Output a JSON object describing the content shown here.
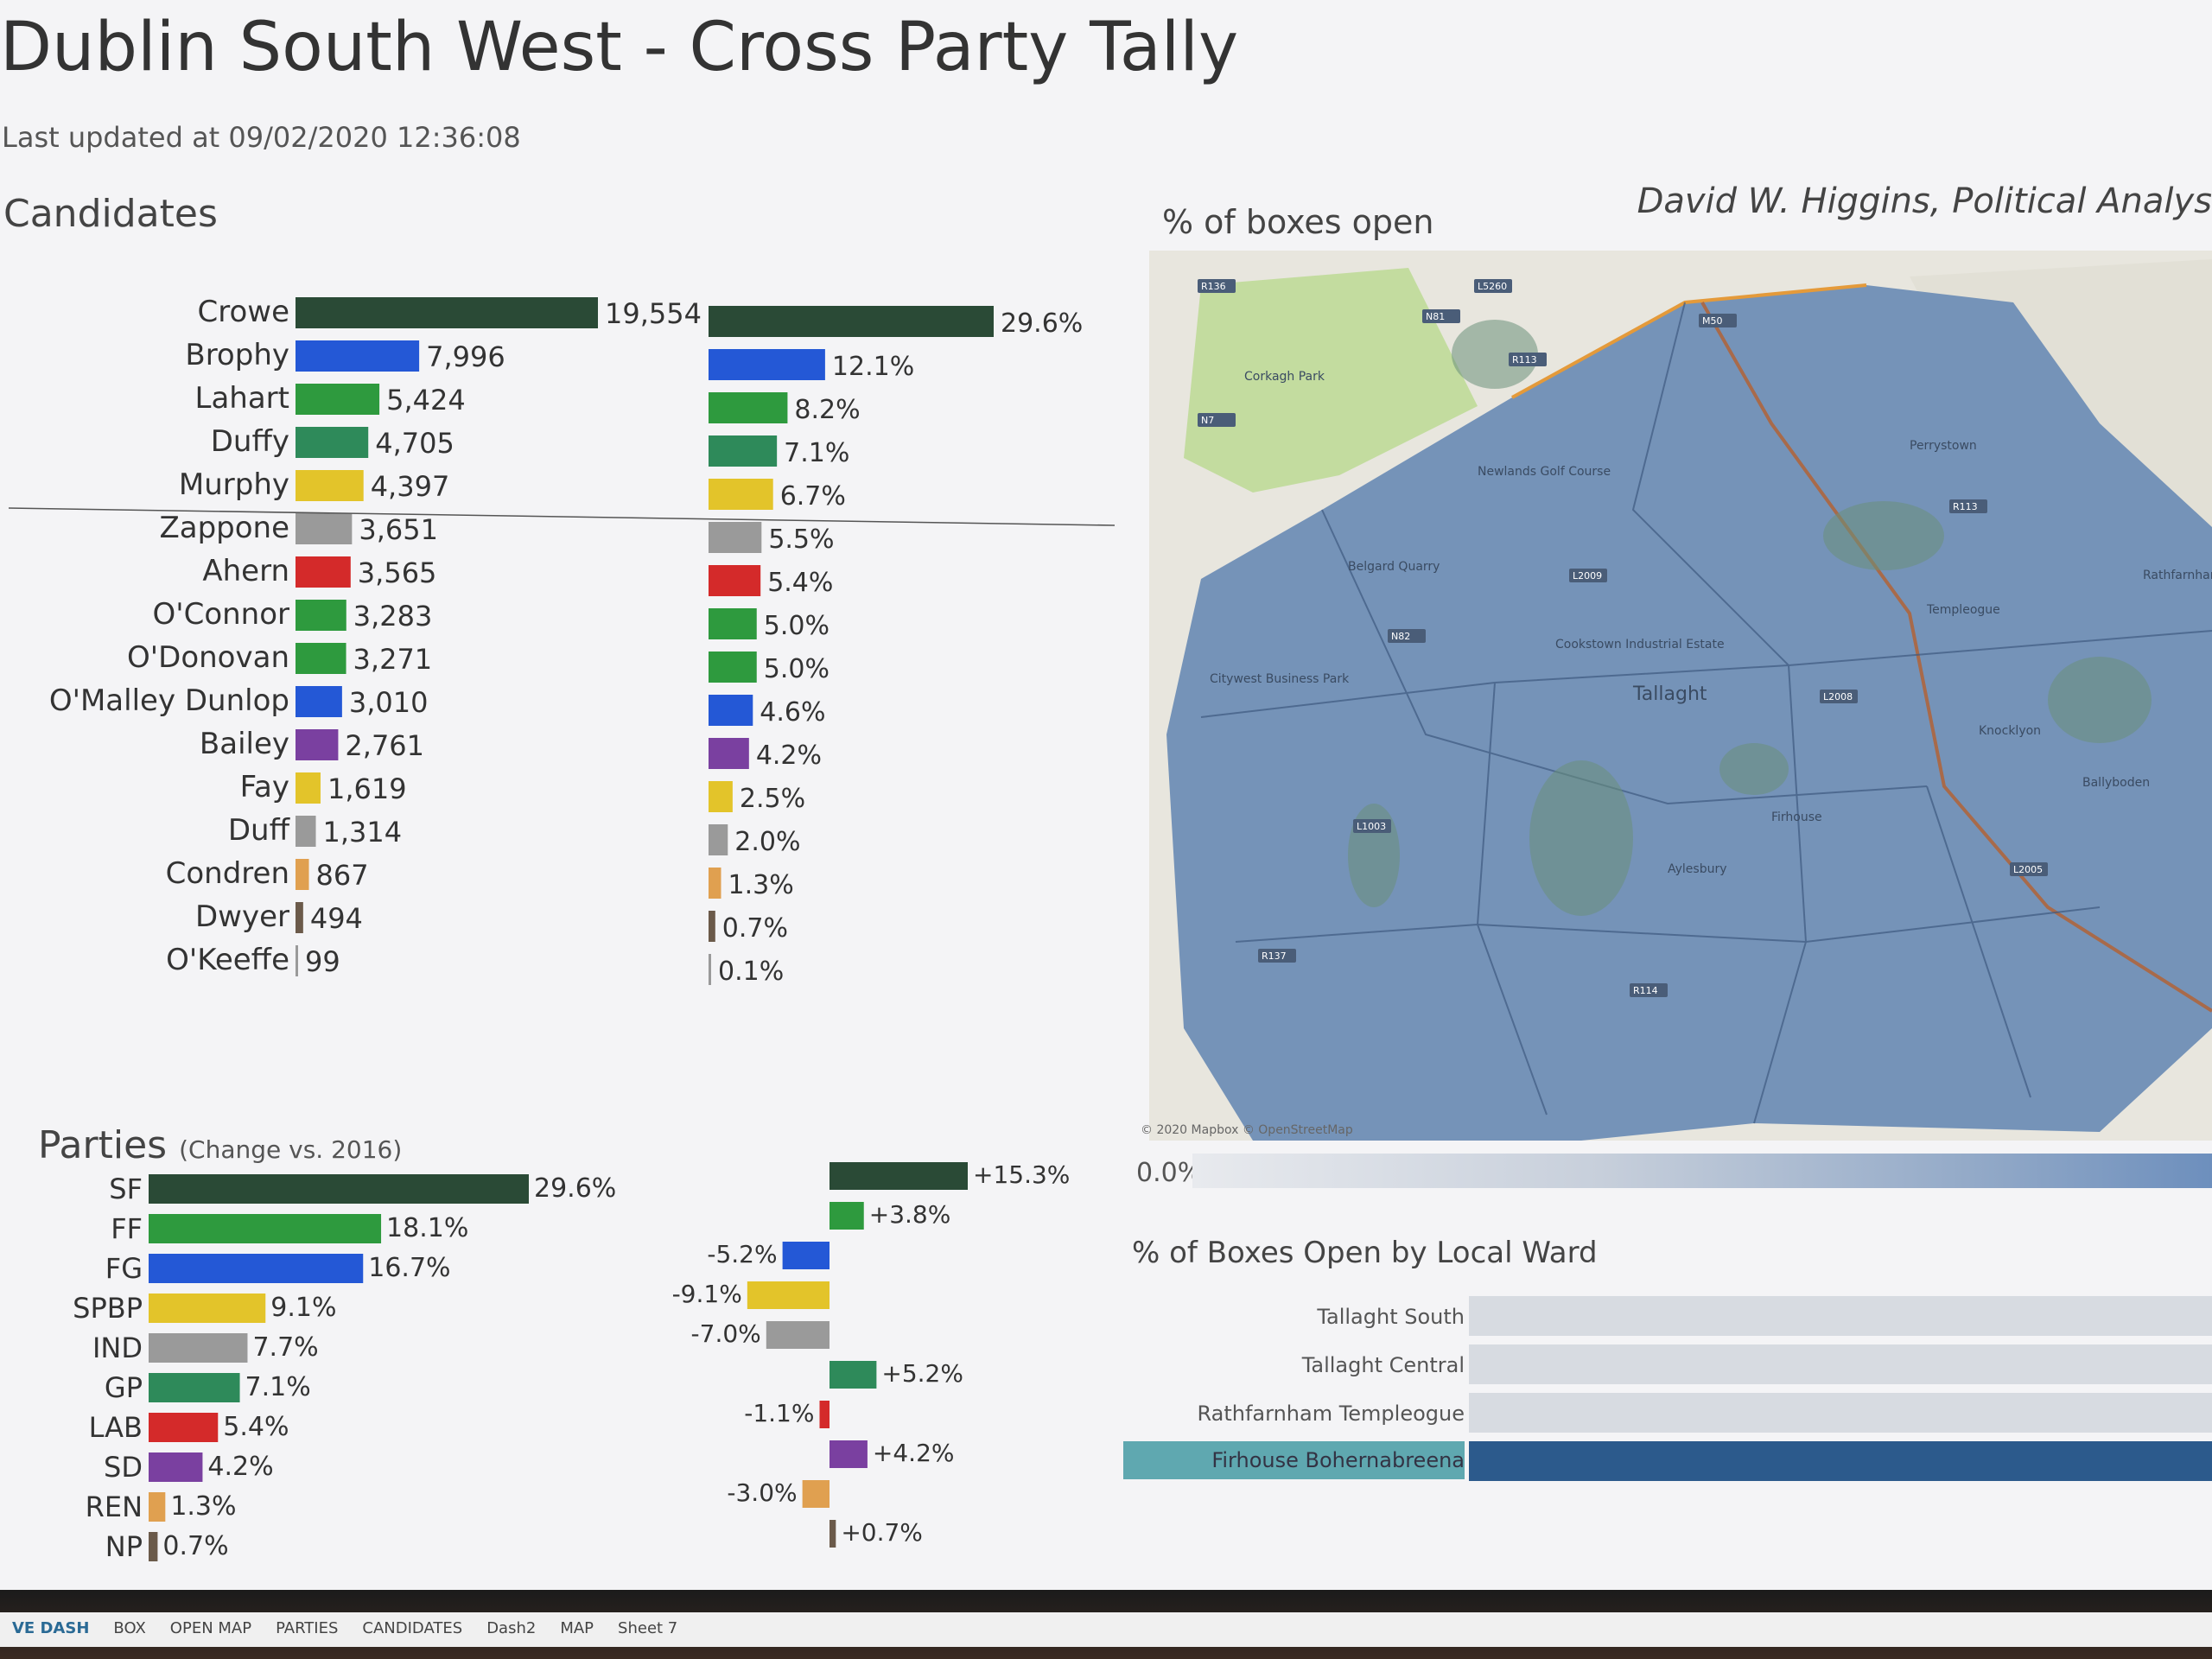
{
  "header": {
    "title": "Dublin South West - Cross Party Tally",
    "last_updated_label": "Last updated at",
    "last_updated_value": "09/02/2020 12:36:08",
    "author": "David W. Higgins, Political Analys"
  },
  "sections": {
    "candidates": "Candidates",
    "parties": "Parties",
    "parties_note": "(Change vs. 2016)",
    "boxes_open": "% of boxes open",
    "by_ward": "% of Boxes Open by Local Ward"
  },
  "map": {
    "legend_min": "0.0%",
    "attribution": "© 2020 Mapbox © OpenStreetMap",
    "labels": [
      "Tallaght",
      "Corkagh Park",
      "Belgard Quarry",
      "Citywest Business Park",
      "Newlands Golf Course",
      "Cookstown Industrial Estate",
      "Aylesbury",
      "Firhouse",
      "Knocklyon",
      "Templeogue",
      "Perrystown",
      "Ballyboden",
      "Rathfarnham"
    ],
    "road_labels": [
      "R136",
      "N7",
      "N81",
      "R113",
      "L5260",
      "M50",
      "L2009",
      "N82",
      "R137",
      "R114",
      "R113",
      "L2005",
      "L1003",
      "L2008"
    ]
  },
  "wards": [
    {
      "name": "Tallaght South",
      "open": 0.0
    },
    {
      "name": "Tallaght Central",
      "open": 0.0
    },
    {
      "name": "Rathfarnham Templeogue",
      "open": 0.0
    },
    {
      "name": "Firhouse Bohernabreena",
      "open": 0.0
    }
  ],
  "tabs": [
    "VE DASH",
    "BOX",
    "OPEN MAP",
    "PARTIES",
    "CANDIDATES",
    "Dash2",
    "MAP",
    "Sheet 7"
  ],
  "colors": {
    "SF": "#2a4a36",
    "FF": "#2e9a3e",
    "FG": "#2458d6",
    "SPBP": "#e3c42a",
    "IND": "#9a9a9a",
    "GP": "#2e8a5a",
    "LAB": "#d42a2a",
    "SD": "#7a40a0",
    "REN": "#e0a050",
    "NP": "#6b5a4a",
    "map_blue": "#7593b8",
    "ward_highlight": "#5fa8b0"
  },
  "chart_data": [
    {
      "type": "bar",
      "title": "Candidates",
      "series": [
        {
          "name": "",
          "values": [
            19554,
            7996,
            5424,
            4705,
            4397,
            3651,
            3565,
            3283,
            3271,
            3010,
            2761,
            1619,
            1314,
            867,
            494,
            99
          ]
        },
        {
          "name": "",
          "values": [
            29.6,
            12.1,
            8.2,
            7.1,
            6.7,
            5.5,
            5.4,
            5.0,
            5.0,
            4.6,
            4.2,
            2.5,
            2.0,
            1.3,
            0.7,
            0.1
          ]
        }
      ],
      "categories": [
        "Crowe",
        "Brophy",
        "Lahart",
        "Duffy",
        "Murphy",
        "Zappone",
        "Ahern",
        "O'Connor",
        "O'Donovan",
        "O'Malley Dunlop",
        "Bailey",
        "Fay",
        "Duff",
        "Condren",
        "Dwyer",
        "O'Keeffe"
      ],
      "labels": [
        "19,554",
        "7,996",
        "5,424",
        "4,705",
        "4,397",
        "3,651",
        "3,565",
        "3,283",
        "3,271",
        "3,010",
        "2,761",
        "1,619",
        "1,314",
        "867",
        "494",
        "99"
      ],
      "pct_labels": [
        "29.6%",
        "12.1%",
        "8.2%",
        "7.1%",
        "6.7%",
        "5.5%",
        "5.4%",
        "5.0%",
        "5.0%",
        "4.6%",
        "4.2%",
        "2.5%",
        "2.0%",
        "1.3%",
        "0.7%",
        "0.1%"
      ],
      "party": [
        "SF",
        "FG",
        "FF",
        "GP",
        "SPBP",
        "IND",
        "LAB",
        "FF",
        "FF",
        "FG",
        "SD",
        "SPBP",
        "IND",
        "REN",
        "NP",
        "IND"
      ],
      "divider_after": 5
    },
    {
      "type": "bar",
      "title": "Parties",
      "categories": [
        "SF",
        "FF",
        "FG",
        "SPBP",
        "IND",
        "GP",
        "LAB",
        "SD",
        "REN",
        "NP"
      ],
      "series": [
        {
          "name": "",
          "values": [
            29.6,
            18.1,
            16.7,
            9.1,
            7.7,
            7.1,
            5.4,
            4.2,
            1.3,
            0.7
          ]
        },
        {
          "name": "(Change vs. 2016)",
          "values": [
            15.3,
            3.8,
            -5.2,
            -9.1,
            -7.0,
            5.2,
            -1.1,
            4.2,
            -3.0,
            0.7
          ]
        }
      ],
      "labels": [
        "29.6%",
        "18.1%",
        "16.7%",
        "9.1%",
        "7.7%",
        "7.1%",
        "5.4%",
        "4.2%",
        "1.3%",
        "0.7%"
      ],
      "change_labels": [
        "+15.3%",
        "+3.8%",
        "-5.2%",
        "-9.1%",
        "-7.0%",
        "+5.2%",
        "-1.1%",
        "+4.2%",
        "-3.0%",
        "+0.7%"
      ]
    }
  ]
}
